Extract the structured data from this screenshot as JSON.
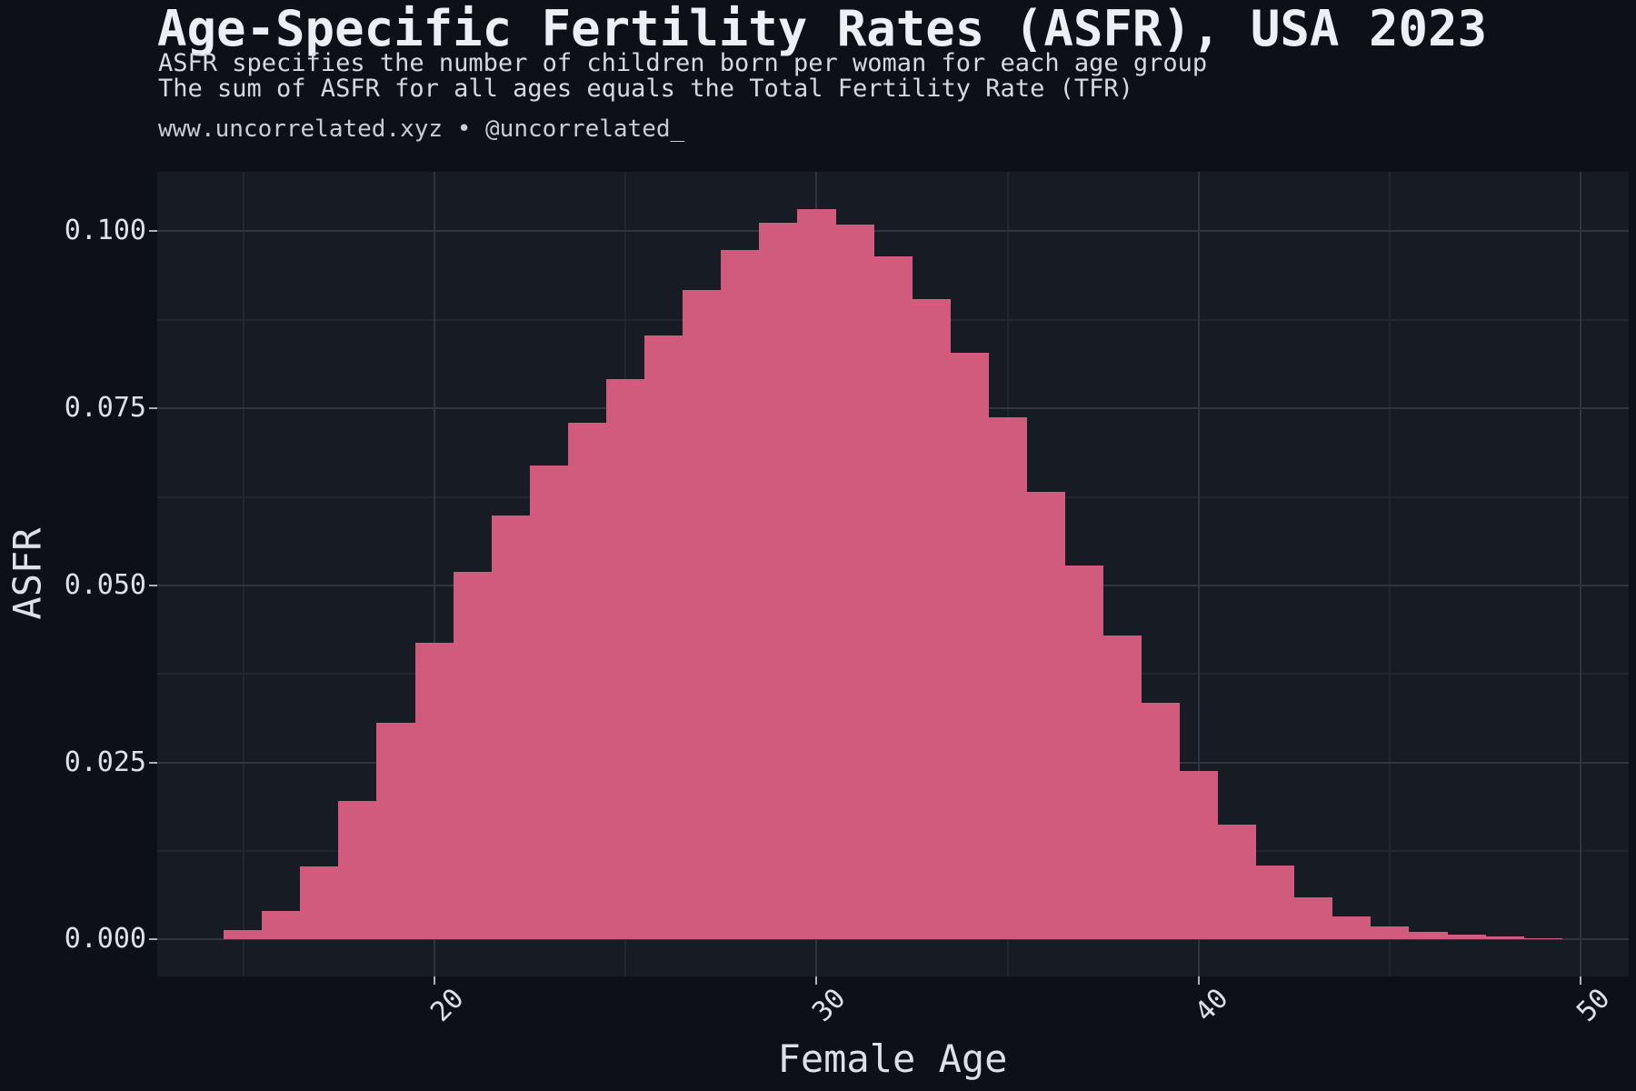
{
  "page": {
    "title": "Age-Specific Fertility Rates (ASFR), USA 2023",
    "subtitle_line1": "ASFR specifies the number of children born per woman for each age group",
    "subtitle_line2": "The sum of ASFR for all ages equals the Total Fertility Rate (TFR)",
    "caption": "www.uncorrelated.xyz • @uncorrelated_"
  },
  "chart_data": {
    "type": "bar",
    "title": "Age-Specific Fertility Rates (ASFR), USA 2023",
    "xlabel": "Female Age",
    "ylabel": "ASFR",
    "x": [
      15,
      16,
      17,
      18,
      19,
      20,
      21,
      22,
      23,
      24,
      25,
      26,
      27,
      28,
      29,
      30,
      31,
      32,
      33,
      34,
      35,
      36,
      37,
      38,
      39,
      40,
      41,
      42,
      43,
      44,
      45,
      46,
      47,
      48,
      49
    ],
    "values": [
      0.0014,
      0.0041,
      0.0103,
      0.0196,
      0.0306,
      0.0419,
      0.0519,
      0.0599,
      0.0669,
      0.073,
      0.0791,
      0.0853,
      0.0917,
      0.0974,
      0.1012,
      0.1032,
      0.101,
      0.0964,
      0.0904,
      0.0829,
      0.0737,
      0.0632,
      0.0528,
      0.0429,
      0.0334,
      0.0238,
      0.0162,
      0.0104,
      0.006,
      0.0033,
      0.0019,
      0.0011,
      0.0007,
      0.0004,
      0.0002
    ],
    "bar_width": 1.0,
    "x_ticks": {
      "values": [
        20,
        30,
        40,
        50
      ],
      "labels": [
        "20",
        "30",
        "40",
        "50"
      ]
    },
    "y_ticks": {
      "values": [
        0,
        0.025,
        0.05,
        0.075,
        0.1
      ],
      "labels": [
        "0.000",
        "0.025",
        "0.050",
        "0.075",
        "0.100"
      ]
    },
    "x_minor": [
      15,
      25,
      35,
      45
    ],
    "y_minor": [
      0.0125,
      0.0375,
      0.0625,
      0.0875
    ],
    "xlim": [
      12.75,
      51.25
    ],
    "ylim": [
      -0.0052,
      0.1084
    ],
    "grid": "major+minor",
    "legend": "none",
    "colors": {
      "bar": "#d05b7c",
      "page_bg": "#0d1017",
      "plot_bg": "#171b23",
      "grid_major": "#30363f",
      "grid_minor": "#20252e",
      "title_text": "#eceff3",
      "axis_text": "#dde0e4"
    }
  }
}
